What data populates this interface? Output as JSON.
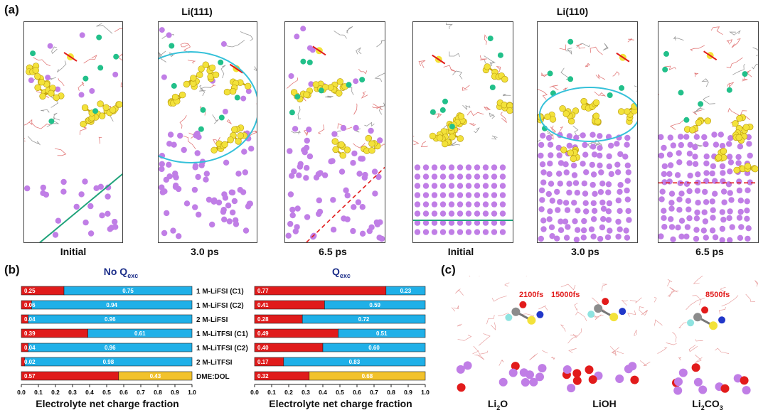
{
  "panel_a": {
    "label": "(a)",
    "facets": [
      {
        "title": "Li(111)",
        "frames": [
          "Initial",
          "3.0 ps",
          "6.5 ps"
        ]
      },
      {
        "title": "Li(110)",
        "frames": [
          "Initial",
          "3.0 ps",
          "6.5 ps"
        ]
      }
    ]
  },
  "panel_b": {
    "label": "(b)",
    "row_labels": [
      "1 M-LiFSI (C1)",
      "1 M-LiFSI (C2)",
      "2 M-LiFSI",
      "1 M-LiTFSI (C1)",
      "1 M-LiTFSI (C2)",
      "2 M-LiTFSI",
      "DME:DOL"
    ]
  },
  "panel_c": {
    "label": "(c)",
    "times": [
      "2100fs",
      "15000fs",
      "8500fs"
    ],
    "compounds": [
      {
        "main": "Li",
        "sub": "2",
        "tail": "O"
      },
      {
        "main": "LiOH",
        "sub": "",
        "tail": ""
      },
      {
        "main": "Li",
        "sub": "2",
        "tail": "CO",
        "sub2": "3"
      }
    ]
  },
  "colors": {
    "red": "#e01b1b",
    "blue": "#1fb0e8",
    "gold": "#f2c22b",
    "lithium": "#c07ee6",
    "sulfur": "#f3e23a",
    "cyan": "#35c1d9",
    "teal": "#22c08a"
  },
  "chart_data": [
    {
      "type": "bar",
      "stacked": true,
      "orientation": "horizontal",
      "title_main": "No Q",
      "title_sub": "exc",
      "xlabel": "Electrolyte net charge fraction",
      "xlim": [
        0.0,
        1.0
      ],
      "xticks": [
        "0.0",
        "0.1",
        "0.2",
        "0.3",
        "0.4",
        "0.5",
        "0.6",
        "0.7",
        "0.8",
        "0.9",
        "1.0"
      ],
      "categories": [
        "1 M-LiFSI (C1)",
        "1 M-LiFSI (C2)",
        "2 M-LiFSI",
        "1 M-LiTFSI (C1)",
        "1 M-LiTFSI (C2)",
        "2 M-LiTFSI",
        "DME:DOL"
      ],
      "series": [
        {
          "name": "first",
          "values": [
            0.25,
            0.06,
            0.04,
            0.39,
            0.04,
            0.02,
            0.57
          ],
          "labels": [
            "0.25",
            "0.06",
            "0.04",
            "0.39",
            "0.04",
            "0.02",
            "0.57"
          ]
        },
        {
          "name": "second",
          "values": [
            0.75,
            0.94,
            0.96,
            0.61,
            0.96,
            0.98,
            0.43
          ],
          "labels": [
            "0.75",
            "0.94",
            "0.96",
            "0.61",
            "0.96",
            "0.98",
            "0.43"
          ]
        }
      ]
    },
    {
      "type": "bar",
      "stacked": true,
      "orientation": "horizontal",
      "title_main": "Q",
      "title_sub": "exc",
      "xlabel": "Electrolyte net charge fraction",
      "xlim": [
        0.0,
        1.0
      ],
      "xticks": [
        "0.0",
        "0.1",
        "0.2",
        "0.3",
        "0.4",
        "0.5",
        "0.6",
        "0.7",
        "0.8",
        "0.9",
        "1.0"
      ],
      "categories": [
        "1 M-LiFSI (C1)",
        "1 M-LiFSI (C2)",
        "2 M-LiFSI",
        "1 M-LiTFSI (C1)",
        "1 M-LiTFSI (C2)",
        "2 M-LiTFSI",
        "DME:DOL"
      ],
      "series": [
        {
          "name": "first",
          "values": [
            0.77,
            0.41,
            0.28,
            0.49,
            0.4,
            0.17,
            0.32
          ],
          "labels": [
            "0.77",
            "0.41",
            "0.28",
            "0.49",
            "0.40",
            "0.17",
            "0.32"
          ]
        },
        {
          "name": "second",
          "values": [
            0.23,
            0.59,
            0.72,
            0.51,
            0.6,
            0.83,
            0.68
          ],
          "labels": [
            "0.23",
            "0.59",
            "0.72",
            "0.51",
            "0.60",
            "0.83",
            "0.68"
          ]
        }
      ]
    }
  ]
}
